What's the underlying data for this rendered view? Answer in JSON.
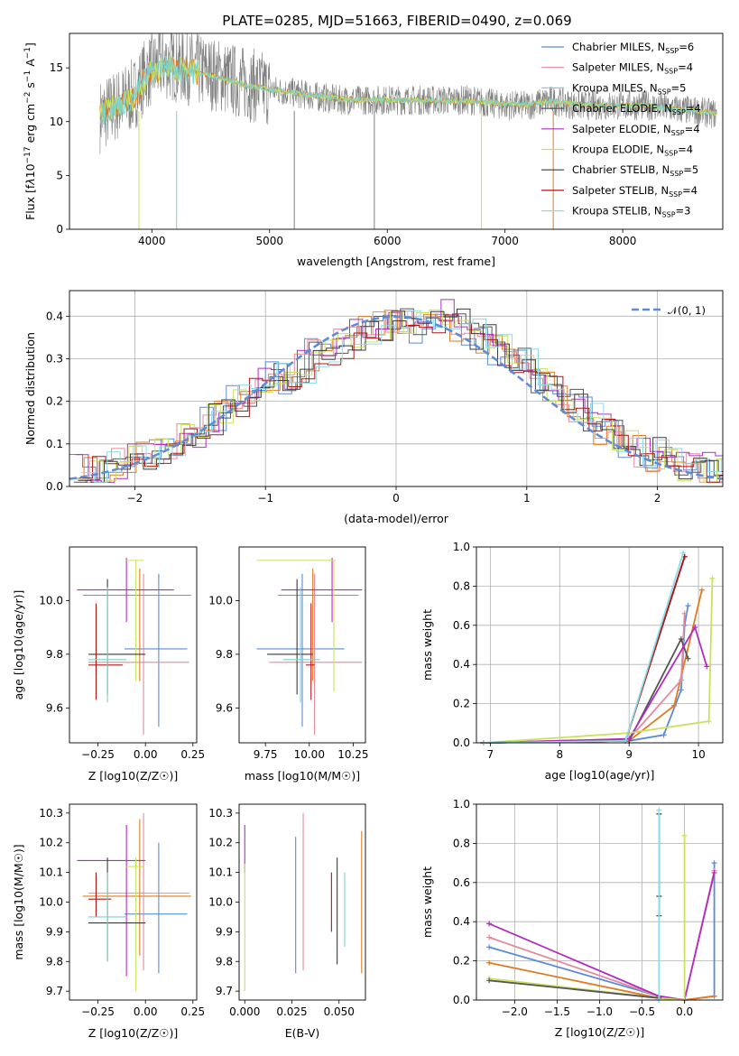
{
  "title": "PLATE=0285, MJD=51663, FIBERID=0490, z=0.069",
  "colors": {
    "Chabrier MILES": "#5b8bd9",
    "Salpeter MILES": "#e07b1f",
    "Kroupa MILES": "#7fd0c8",
    "Chabrier ELODIE": "#555555",
    "Salpeter ELODIE": "#b22cc1",
    "Kroupa ELODIE": "#c9e25a",
    "Chabrier STELIB": "#3a3a3a",
    "Salpeter STELIB": "#b01515",
    "Kroupa STELIB": "#8fdbe6"
  },
  "legend": [
    {
      "text": "Chabrier MILES, N",
      "sub": "SSP",
      "n": "=6",
      "color": "#5b8bd9"
    },
    {
      "text": "Salpeter MILES, N",
      "sub": "SSP",
      "n": "=4",
      "color": "#e58a9c"
    },
    {
      "text": "Kroupa MILES, N",
      "sub": "SSP",
      "n": "=5",
      "color": "#7fd0c8"
    },
    {
      "text": "Chabrier ELODIE, N",
      "sub": "SSP",
      "n": "=4",
      "color": "#555555"
    },
    {
      "text": "Salpeter ELODIE, N",
      "sub": "SSP",
      "n": "=4",
      "color": "#b22cc1"
    },
    {
      "text": "Kroupa ELODIE, N",
      "sub": "SSP",
      "n": "=4",
      "color": "#c9e25a"
    },
    {
      "text": "Chabrier STELIB, N",
      "sub": "SSP",
      "n": "=5",
      "color": "#3a3a3a"
    },
    {
      "text": "Salpeter STELIB, N",
      "sub": "SSP",
      "n": "=4",
      "color": "#b01515"
    },
    {
      "text": "Kroupa STELIB, N",
      "sub": "SSP",
      "n": "=3",
      "color": "#8fdbe6"
    }
  ],
  "chart_data": [
    {
      "type": "line",
      "title": "PLATE=0285, MJD=51663, FIBERID=0490, z=0.069",
      "xlabel": "wavelength [Angstrom, rest frame]",
      "ylabel": "Flux [fλ10⁻¹⁷ erg cm⁻² s⁻¹ A⁻¹]",
      "xlim": [
        3300,
        8850
      ],
      "ylim": [
        0,
        18.2
      ],
      "xticks": [
        4000,
        5000,
        6000,
        7000,
        8000
      ],
      "yticks": [
        0,
        5,
        10,
        15
      ],
      "series": [
        {
          "name": "data",
          "x": [
            3560,
            3700,
            3850,
            3950,
            4100,
            4300,
            4500,
            4800,
            5000,
            5300,
            5600,
            5900,
            6200,
            6500,
            6700,
            7000,
            7200,
            7400,
            7600,
            7800,
            8000,
            8200,
            8400,
            8600,
            8800
          ],
          "y": [
            10.5,
            11.5,
            12.5,
            14.5,
            15.5,
            15,
            14.5,
            13.5,
            13,
            12.5,
            12,
            12,
            12,
            12,
            12,
            11.5,
            11.5,
            12,
            11.5,
            11.5,
            11.5,
            11.5,
            11.2,
            11,
            10.7
          ]
        },
        {
          "name": "model",
          "x": [
            3560,
            3700,
            3850,
            3950,
            4100,
            4300,
            4500,
            4800,
            5000,
            5300,
            5600,
            5900,
            6200,
            6500,
            6700,
            7000,
            7200,
            7400,
            7600,
            7800,
            8000,
            8200,
            8400,
            8600,
            8800
          ],
          "y": [
            10.8,
            11.4,
            12.3,
            14.2,
            15.2,
            14.8,
            14.3,
            13.4,
            13,
            12.5,
            12.1,
            12,
            12,
            11.9,
            11.9,
            11.7,
            11.6,
            11.9,
            11.6,
            11.5,
            11.5,
            11.5,
            11.2,
            11,
            10.8
          ]
        }
      ]
    },
    {
      "type": "line",
      "xlabel": "(data-model)/error",
      "ylabel": "Normed distribution",
      "xlim": [
        -2.5,
        2.5
      ],
      "ylim": [
        0,
        0.46
      ],
      "xticks": [
        -2,
        -1,
        0,
        1,
        2
      ],
      "yticks": [
        0.0,
        0.1,
        0.2,
        0.3,
        0.4
      ],
      "legend": "𝒩(0, 1)",
      "bins": [
        -2.5,
        -2.4,
        -2.3,
        -2.2,
        -2.1,
        -2.0,
        -1.9,
        -1.8,
        -1.7,
        -1.6,
        -1.5,
        -1.4,
        -1.3,
        -1.2,
        -1.1,
        -1.0,
        -0.9,
        -0.8,
        -0.7,
        -0.6,
        -0.5,
        -0.4,
        -0.3,
        -0.2,
        -0.1,
        0.0,
        0.1,
        0.2,
        0.3,
        0.4,
        0.5,
        0.6,
        0.7,
        0.8,
        0.9,
        1.0,
        1.1,
        1.2,
        1.3,
        1.4,
        1.5,
        1.6,
        1.7,
        1.8,
        1.9,
        2.0,
        2.1,
        2.2,
        2.3,
        2.4
      ],
      "hist": [
        0.04,
        0.035,
        0.045,
        0.05,
        0.06,
        0.065,
        0.075,
        0.09,
        0.11,
        0.13,
        0.16,
        0.17,
        0.2,
        0.22,
        0.24,
        0.26,
        0.25,
        0.28,
        0.31,
        0.32,
        0.33,
        0.36,
        0.37,
        0.38,
        0.39,
        0.38,
        0.37,
        0.4,
        0.4,
        0.38,
        0.36,
        0.34,
        0.32,
        0.3,
        0.29,
        0.26,
        0.24,
        0.2,
        0.19,
        0.17,
        0.13,
        0.12,
        0.1,
        0.085,
        0.075,
        0.065,
        0.05,
        0.045,
        0.04,
        0.04
      ]
    },
    {
      "type": "scatter",
      "xlabel": "Z [log10(Z/Z☉)]",
      "ylabel": "age [log10(age/yr)]",
      "xlim": [
        -0.4,
        0.27
      ],
      "ylim": [
        9.47,
        10.2
      ],
      "xticks": [
        -0.25,
        0.0,
        0.25
      ],
      "yticks": [
        9.6,
        9.8,
        10.0
      ],
      "points": [
        {
          "x": 0.07,
          "y": 9.82,
          "xe": [
            -0.11,
            0.22
          ],
          "ye": [
            9.53,
            10.1
          ],
          "c": "#5b8bd9"
        },
        {
          "x": -0.03,
          "y": 10.02,
          "xe": [
            -0.33,
            0.24
          ],
          "ye": [
            9.7,
            10.12
          ],
          "c": "#e07b1f"
        },
        {
          "x": -0.01,
          "y": 9.77,
          "xe": [
            -0.3,
            0.23
          ],
          "ye": [
            9.5,
            10.1
          ],
          "c": "#e58a9c"
        },
        {
          "x": -0.1,
          "y": 10.04,
          "xe": [
            -0.36,
            0.15
          ],
          "ye": [
            9.92,
            10.16
          ],
          "c": "#b22cc1"
        },
        {
          "x": -0.05,
          "y": 10.15,
          "xe": [
            -0.1,
            -0.01
          ],
          "ye": [
            9.7,
            10.15
          ],
          "c": "#c9e25a"
        },
        {
          "x": -0.2,
          "y": 9.8,
          "xe": [
            -0.3,
            0.0
          ],
          "ye": [
            9.65,
            10.08
          ],
          "c": "#3a3a3a"
        },
        {
          "x": -0.26,
          "y": 9.76,
          "xe": [
            -0.3,
            -0.12
          ],
          "ye": [
            9.63,
            9.99
          ],
          "c": "#b01515"
        },
        {
          "x": -0.2,
          "y": 9.78,
          "xe": [
            -0.3,
            -0.1
          ],
          "ye": [
            9.62,
            10.05
          ],
          "c": "#7fd0c8"
        }
      ]
    },
    {
      "type": "scatter",
      "xlabel": "mass [log10(M/M☉)]",
      "xlim": [
        9.6,
        10.32
      ],
      "ylim": [
        9.47,
        10.2
      ],
      "xticks": [
        9.75,
        10.0,
        10.25
      ],
      "yticks": [
        9.6,
        9.8,
        10.0
      ],
      "points": [
        {
          "x": 9.96,
          "y": 9.82,
          "xe": [
            9.7,
            10.2
          ],
          "ye": [
            9.53,
            10.1
          ],
          "c": "#5b8bd9"
        },
        {
          "x": 10.02,
          "y": 10.02,
          "xe": [
            9.82,
            10.28
          ],
          "ye": [
            9.7,
            10.12
          ],
          "c": "#e07b1f"
        },
        {
          "x": 10.03,
          "y": 9.77,
          "xe": [
            9.77,
            10.3
          ],
          "ye": [
            9.5,
            10.1
          ],
          "c": "#e58a9c"
        },
        {
          "x": 10.13,
          "y": 10.04,
          "xe": [
            9.84,
            10.3
          ],
          "ye": [
            9.92,
            10.16
          ],
          "c": "#b22cc1"
        },
        {
          "x": 10.14,
          "y": 10.15,
          "xe": [
            9.7,
            10.15
          ],
          "ye": [
            9.66,
            10.15
          ],
          "c": "#c9e25a"
        },
        {
          "x": 9.93,
          "y": 9.8,
          "xe": [
            9.76,
            10.02
          ],
          "ye": [
            9.65,
            10.08
          ],
          "c": "#3a3a3a"
        },
        {
          "x": 10.01,
          "y": 9.76,
          "xe": [
            9.98,
            10.03
          ],
          "ye": [
            9.63,
            9.99
          ],
          "c": "#b01515"
        },
        {
          "x": 9.95,
          "y": 9.78,
          "xe": [
            9.85,
            10.06
          ],
          "ye": [
            9.62,
            10.05
          ],
          "c": "#7fd0c8"
        }
      ]
    },
    {
      "type": "line",
      "xlabel": "age [log10(age/yr)]",
      "ylabel": "mass weight",
      "xlim": [
        6.8,
        10.35
      ],
      "ylim": [
        0,
        1.0
      ],
      "xticks": [
        7,
        8,
        9,
        10
      ],
      "yticks": [
        0.0,
        0.2,
        0.4,
        0.6,
        0.8,
        1.0
      ],
      "series": [
        {
          "name": "Chabrier MILES",
          "c": "#5b8bd9",
          "x": [
            6.9,
            9.0,
            9.5,
            9.75,
            9.8,
            9.85
          ],
          "y": [
            0,
            0.01,
            0.04,
            0.27,
            0.6,
            0.7
          ]
        },
        {
          "name": "Salpeter MILES",
          "c": "#e07b1f",
          "x": [
            6.9,
            9.0,
            9.65,
            10.05
          ],
          "y": [
            0,
            0.01,
            0.19,
            0.78
          ]
        },
        {
          "name": "Kroupa MILES",
          "c": "#e58a9c",
          "x": [
            6.9,
            9.0,
            9.75,
            9.8
          ],
          "y": [
            0,
            0.02,
            0.32,
            0.66
          ]
        },
        {
          "name": "Chabrier ELODIE",
          "c": "#555555",
          "x": [
            6.9,
            9.0,
            9.75,
            9.85
          ],
          "y": [
            0,
            0.01,
            0.53,
            0.43
          ]
        },
        {
          "name": "Salpeter ELODIE",
          "c": "#b22cc1",
          "x": [
            6.9,
            9.0,
            9.95,
            10.12
          ],
          "y": [
            0,
            0.02,
            0.59,
            0.39
          ]
        },
        {
          "name": "Kroupa ELODIE",
          "c": "#c9e25a",
          "x": [
            6.9,
            9.0,
            10.15,
            10.2
          ],
          "y": [
            0,
            0.05,
            0.11,
            0.84
          ]
        },
        {
          "name": "Chabrier STELIB",
          "c": "#3a3a3a",
          "x": [
            6.9,
            8.95,
            9.8
          ],
          "y": [
            0,
            0.01,
            0.95
          ]
        },
        {
          "name": "Salpeter STELIB",
          "c": "#b01515",
          "x": [
            6.9,
            8.95,
            9.8
          ],
          "y": [
            0,
            0.01,
            0.95
          ]
        },
        {
          "name": "Kroupa STELIB",
          "c": "#8fdbe6",
          "x": [
            6.9,
            8.95,
            9.78
          ],
          "y": [
            0,
            0.01,
            0.97
          ]
        }
      ]
    },
    {
      "type": "scatter",
      "xlabel": "Z [log10(Z/Z☉)]",
      "ylabel": "mass [log10(M/M☉)]",
      "xlim": [
        -0.4,
        0.27
      ],
      "ylim": [
        9.67,
        10.33
      ],
      "xticks": [
        -0.25,
        0.0,
        0.25
      ],
      "yticks": [
        9.7,
        9.8,
        9.9,
        10.0,
        10.1,
        10.2,
        10.3
      ],
      "points": [
        {
          "x": 0.07,
          "y": 9.96,
          "xe": [
            -0.11,
            0.22
          ],
          "ye": [
            9.76,
            10.2
          ],
          "c": "#5b8bd9"
        },
        {
          "x": -0.03,
          "y": 10.02,
          "xe": [
            -0.33,
            0.24
          ],
          "ye": [
            9.82,
            10.28
          ],
          "c": "#e07b1f"
        },
        {
          "x": -0.01,
          "y": 10.03,
          "xe": [
            -0.3,
            0.23
          ],
          "ye": [
            9.77,
            10.3
          ],
          "c": "#e58a9c"
        },
        {
          "x": -0.1,
          "y": 10.14,
          "xe": [
            -0.36,
            0.0
          ],
          "ye": [
            9.75,
            10.26
          ],
          "c": "#b22cc1"
        },
        {
          "x": -0.05,
          "y": 10.12,
          "xe": [
            -0.1,
            -0.01
          ],
          "ye": [
            9.7,
            10.15
          ],
          "c": "#c9e25a"
        },
        {
          "x": -0.2,
          "y": 9.93,
          "xe": [
            -0.3,
            0.0
          ],
          "ye": [
            9.8,
            10.15
          ],
          "c": "#3a3a3a"
        },
        {
          "x": -0.26,
          "y": 10.01,
          "xe": [
            -0.3,
            -0.18
          ],
          "ye": [
            9.95,
            10.1
          ],
          "c": "#b01515"
        },
        {
          "x": -0.2,
          "y": 9.95,
          "xe": [
            -0.3,
            -0.1
          ],
          "ye": [
            9.8,
            10.1
          ],
          "c": "#7fd0c8"
        }
      ]
    },
    {
      "type": "scatter",
      "xlabel": "E(B-V)",
      "xlim": [
        -0.003,
        0.064
      ],
      "ylim": [
        9.67,
        10.33
      ],
      "xticks": [
        0.0,
        0.025,
        0.05
      ],
      "yticks": [
        9.7,
        9.8,
        9.9,
        10.0,
        10.1,
        10.2,
        10.3
      ],
      "points": [
        {
          "x": 0.027,
          "y": 9.96,
          "ye": [
            9.76,
            10.22
          ],
          "c": "#5b8bd9"
        },
        {
          "x": 0.062,
          "y": 10.0,
          "ye": [
            9.76,
            10.24
          ],
          "c": "#e07b1f"
        },
        {
          "x": 0.031,
          "y": 10.03,
          "ye": [
            9.77,
            10.3
          ],
          "c": "#e58a9c"
        },
        {
          "x": 0.0,
          "y": 10.14,
          "ye": [
            10.1,
            10.26
          ],
          "c": "#b22cc1"
        },
        {
          "x": 0.0,
          "y": 10.0,
          "ye": [
            9.7,
            10.13
          ],
          "c": "#c9e25a"
        },
        {
          "x": 0.049,
          "y": 9.97,
          "ye": [
            9.79,
            10.15
          ],
          "c": "#3a3a3a"
        },
        {
          "x": 0.046,
          "y": 10.0,
          "ye": [
            9.9,
            10.1
          ],
          "c": "#b01515"
        },
        {
          "x": 0.053,
          "y": 9.97,
          "ye": [
            9.85,
            10.1
          ],
          "c": "#7fd0c8"
        }
      ]
    },
    {
      "type": "line",
      "xlabel": "Z [log10(Z/Z☉)]",
      "ylabel": "mass weight",
      "xlim": [
        -2.45,
        0.45
      ],
      "ylim": [
        0,
        1.0
      ],
      "xticks": [
        -2.0,
        -1.5,
        -1.0,
        -0.5,
        0.0
      ],
      "yticks": [
        0.0,
        0.2,
        0.4,
        0.6,
        0.8,
        1.0
      ],
      "series": [
        {
          "name": "Chabrier MILES",
          "c": "#5b8bd9",
          "x": [
            -2.3,
            -0.3,
            0.0,
            0.35,
            0.35
          ],
          "y": [
            0.27,
            0.02,
            0.0,
            0.02,
            0.7
          ]
        },
        {
          "name": "Salpeter MILES",
          "c": "#e07b1f",
          "x": [
            -2.3,
            -0.3,
            0.0,
            0.35
          ],
          "y": [
            0.19,
            0.01,
            0.0,
            0.02
          ]
        },
        {
          "name": "Kroupa MILES",
          "c": "#e58a9c",
          "x": [
            -2.3,
            -0.3,
            0.0,
            0.35
          ],
          "y": [
            0.32,
            0.02,
            0.0,
            0.66
          ]
        },
        {
          "name": "Salpeter ELODIE",
          "c": "#b22cc1",
          "x": [
            -2.3,
            -0.3,
            0.0,
            0.35
          ],
          "y": [
            0.39,
            0.02,
            0.0,
            0.65
          ]
        },
        {
          "name": "Kroupa ELODIE",
          "c": "#c9e25a",
          "x": [
            -2.3,
            -0.3,
            0.0,
            0.0
          ],
          "y": [
            0.11,
            0.01,
            0.0,
            0.84
          ]
        },
        {
          "name": "Chabrier ELODIE",
          "c": "#555555",
          "x": [
            -2.3,
            -0.3
          ],
          "y": [
            0.1,
            0.01
          ]
        },
        {
          "name": "Chabrier STELIB",
          "c": "#3a3a3a",
          "x": [
            -0.3,
            -0.3,
            -0.3
          ],
          "y": [
            0.43,
            0.53,
            0.95
          ]
        },
        {
          "name": "Kroupa STELIB",
          "c": "#8fdbe6",
          "x": [
            -0.3,
            -0.3
          ],
          "y": [
            0.0,
            0.97
          ]
        }
      ]
    }
  ]
}
